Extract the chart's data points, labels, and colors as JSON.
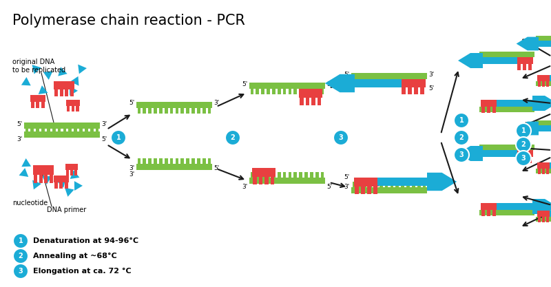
{
  "title": "Polymerase chain reaction - PCR",
  "title_fontsize": 15,
  "bg_color": "#ffffff",
  "dna_green": "#7bc043",
  "dna_blue": "#1bacd6",
  "dna_red": "#e84040",
  "arrow_color": "#1a1a1a",
  "circle_color": "#1bacd6",
  "legend_items": [
    {
      "num": "1",
      "text": "Denaturation at 94-96°C"
    },
    {
      "num": "2",
      "text": "Annealing at ~68°C"
    },
    {
      "num": "3",
      "text": "Elongation at ca. 72 °C"
    }
  ]
}
